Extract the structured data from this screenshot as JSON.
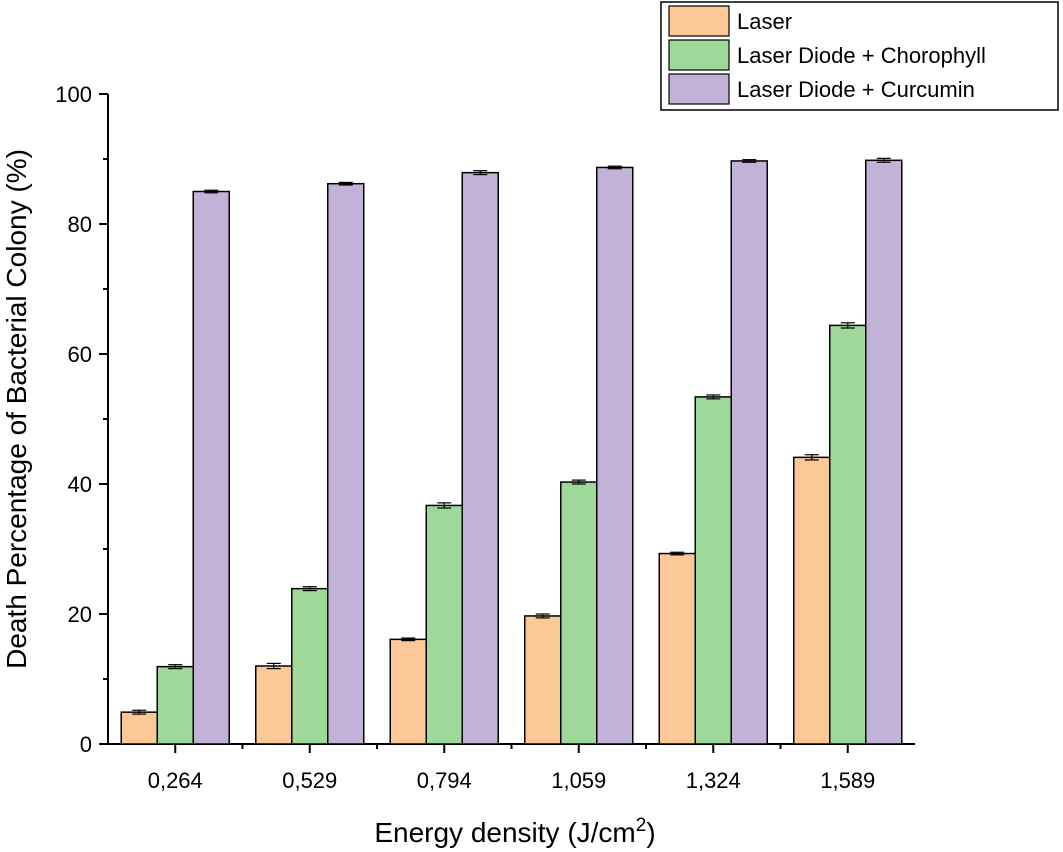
{
  "chart_data": {
    "type": "bar",
    "title": "",
    "xlabel": "Energy density (J/cm",
    "xlabel_sup": "2",
    "xlabel_close": ")",
    "ylabel": "Death Percentage of Bacterial Colony (%)",
    "ylim": [
      0,
      100
    ],
    "yticks": [
      0,
      20,
      40,
      60,
      80,
      100
    ],
    "grid": false,
    "legend_position": "top-right",
    "categories": [
      "0,264",
      "0,529",
      "0,794",
      "1,059",
      "1,324",
      "1,589"
    ],
    "series": [
      {
        "name": "Laser",
        "color": "#FDC898",
        "values": [
          4.9,
          12.0,
          16.1,
          19.7,
          29.3,
          44.1
        ],
        "errors": [
          0.3,
          0.4,
          0.2,
          0.3,
          0.2,
          0.4
        ]
      },
      {
        "name": "Laser Diode + Chorophyll",
        "color": "#9ED99A",
        "values": [
          11.9,
          23.9,
          36.7,
          40.3,
          53.4,
          64.4
        ],
        "errors": [
          0.3,
          0.3,
          0.4,
          0.3,
          0.3,
          0.4
        ]
      },
      {
        "name": "Laser Diode + Curcumin",
        "color": "#C3B2D8",
        "values": [
          85.0,
          86.2,
          87.9,
          88.7,
          89.7,
          89.8
        ],
        "errors": [
          0.2,
          0.2,
          0.3,
          0.2,
          0.2,
          0.3
        ]
      }
    ]
  }
}
